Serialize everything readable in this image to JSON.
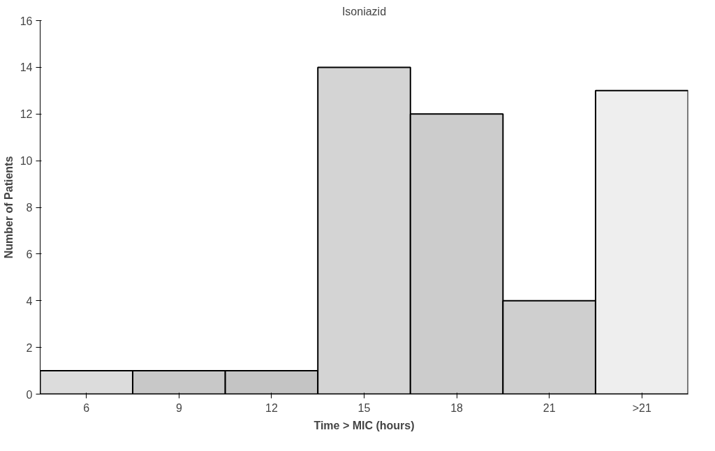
{
  "chart_data": {
    "type": "bar",
    "title": "Isoniazid",
    "xlabel": "Time > MIC (hours)",
    "ylabel": "Number of Patients",
    "categories": [
      "6",
      "9",
      "12",
      "15",
      "18",
      "21",
      ">21"
    ],
    "values": [
      1,
      1,
      1,
      14,
      12,
      4,
      13
    ],
    "colors": [
      "#dcdcdc",
      "#c8c8c8",
      "#c4c4c4",
      "#d4d4d4",
      "#cccccc",
      "#cfcfcf",
      "#eeeeee"
    ],
    "ylim": [
      0,
      16
    ],
    "yticks": [
      0,
      2,
      4,
      6,
      8,
      10,
      12,
      14,
      16
    ],
    "grid": false
  }
}
